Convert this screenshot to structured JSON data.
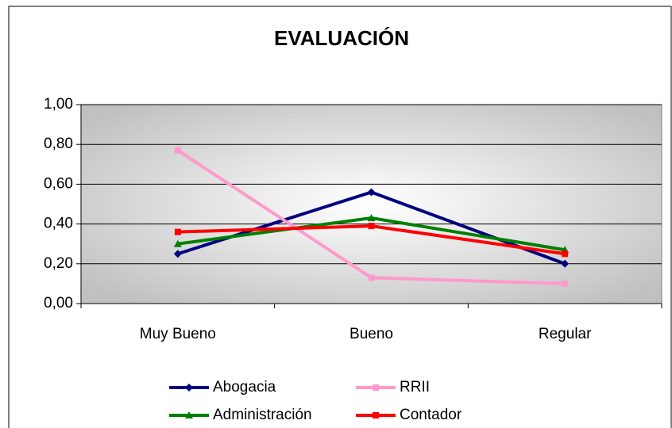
{
  "chart_data": {
    "type": "line",
    "title": "EVALUACIÓN",
    "categories": [
      "Muy Bueno",
      "Bueno",
      "Regular"
    ],
    "series": [
      {
        "name": "Abogacia",
        "color": "#000080",
        "marker": "diamond",
        "values": [
          0.25,
          0.56,
          0.2
        ]
      },
      {
        "name": "RRII",
        "color": "#ff99cc",
        "marker": "square",
        "values": [
          0.77,
          0.13,
          0.1
        ]
      },
      {
        "name": "Administración",
        "color": "#008000",
        "marker": "triangle",
        "values": [
          0.3,
          0.43,
          0.27
        ]
      },
      {
        "name": "Contador",
        "color": "#ff0000",
        "marker": "square",
        "values": [
          0.36,
          0.39,
          0.25
        ]
      }
    ],
    "ylim": [
      0,
      1
    ],
    "yticks": [
      {
        "value": 0,
        "label": "0,00"
      },
      {
        "value": 0.2,
        "label": "0,20"
      },
      {
        "value": 0.4,
        "label": "0,40"
      },
      {
        "value": 0.6,
        "label": "0,60"
      },
      {
        "value": 0.8,
        "label": "0,80"
      },
      {
        "value": 1,
        "label": "1,00"
      }
    ],
    "grid": true,
    "legend": "bottom"
  }
}
